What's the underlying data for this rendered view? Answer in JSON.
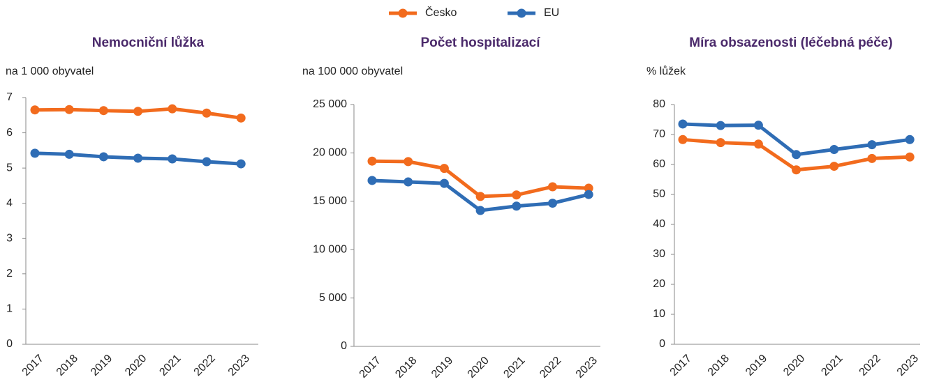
{
  "legend": [
    {
      "name": "Česko",
      "color": "#f26b1d"
    },
    {
      "name": "EU",
      "color": "#2f6db5"
    }
  ],
  "chart_data": [
    {
      "type": "line",
      "title": "Nemocniční lůžka",
      "y_label": "na 1 000 obyvatel",
      "categories": [
        "2017",
        "2018",
        "2019",
        "2020",
        "2021",
        "2022",
        "2023"
      ],
      "series": [
        {
          "values": [
            6.65,
            6.66,
            6.63,
            6.61,
            6.68,
            6.56,
            6.42
          ]
        },
        {
          "values": [
            5.42,
            5.39,
            5.32,
            5.28,
            5.26,
            5.18,
            5.12
          ]
        }
      ],
      "ylim": [
        0,
        7
      ],
      "yticks": [
        0,
        1,
        2,
        3,
        4,
        5,
        6,
        7
      ]
    },
    {
      "type": "line",
      "title": "Počet hospitalizací",
      "y_label": "na 100 000 obyvatel",
      "categories": [
        "2017",
        "2018",
        "2019",
        "2020",
        "2021",
        "2022",
        "2023"
      ],
      "series": [
        {
          "values": [
            19150,
            19100,
            18400,
            15500,
            15650,
            16500,
            16350
          ]
        },
        {
          "values": [
            17150,
            17000,
            16850,
            14050,
            14500,
            14800,
            15700
          ]
        }
      ],
      "ylim": [
        0,
        25000
      ],
      "yticks": [
        0,
        {
          "value": 5000,
          "label": "5 000"
        },
        {
          "value": 10000,
          "label": "10 000"
        },
        {
          "value": 15000,
          "label": "15 000"
        },
        {
          "value": 20000,
          "label": "20 000"
        },
        {
          "value": 25000,
          "label": "25 000"
        }
      ]
    },
    {
      "type": "line",
      "title": "Míra obsazenosti (léčebná péče)",
      "y_label": "% lůžek",
      "categories": [
        "2017",
        "2018",
        "2019",
        "2020",
        "2021",
        "2022",
        "2023"
      ],
      "series": [
        {
          "values": [
            68.3,
            67.3,
            66.8,
            58.2,
            59.4,
            62.0,
            62.5
          ]
        },
        {
          "values": [
            73.5,
            73.0,
            73.1,
            63.3,
            65.0,
            66.6,
            68.3
          ]
        }
      ],
      "ylim": [
        0,
        80
      ],
      "yticks": [
        0,
        10,
        20,
        30,
        40,
        50,
        60,
        70,
        80
      ]
    }
  ]
}
